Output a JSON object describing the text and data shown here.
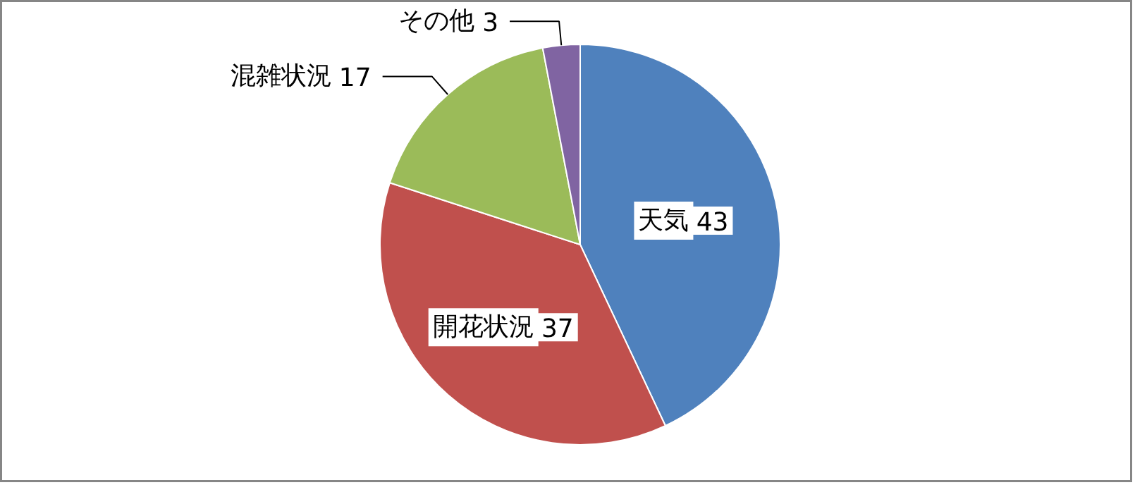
{
  "chart_data": {
    "type": "pie",
    "categories": [
      "天気",
      "開花状況",
      "混雑状況",
      "その他"
    ],
    "values": [
      43,
      37,
      17,
      3
    ],
    "colors": [
      "#4f81bd",
      "#c0504d",
      "#9bbb59",
      "#8064a2"
    ],
    "data_labels": true
  }
}
